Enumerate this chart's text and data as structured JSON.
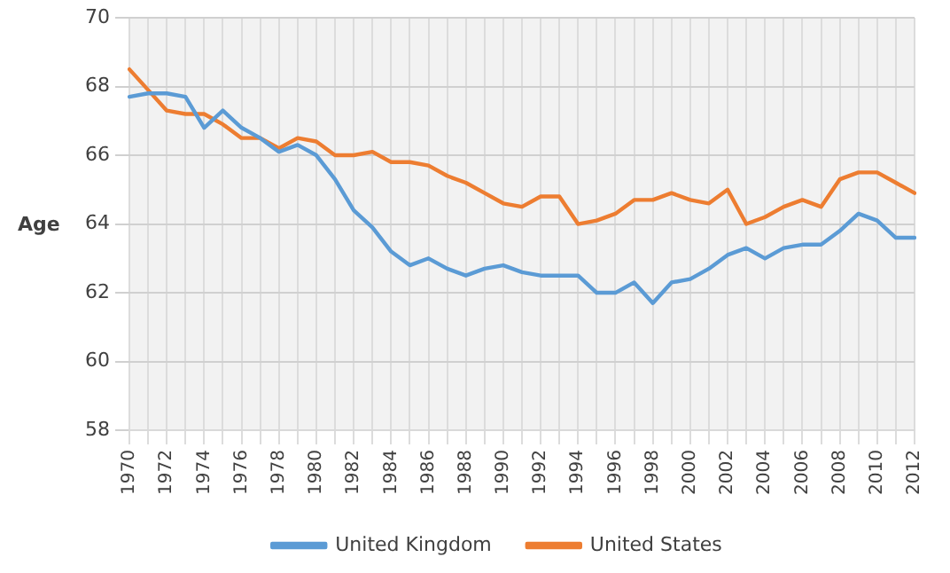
{
  "chart_data": {
    "type": "line",
    "ylabel": "Age",
    "categories": [
      "1970",
      null,
      "1972",
      null,
      "1974",
      null,
      "1976",
      null,
      "1978",
      null,
      "1980",
      null,
      "1982",
      null,
      "1984",
      null,
      "1986",
      null,
      "1988",
      null,
      "1990",
      null,
      "1992",
      null,
      "1994",
      null,
      "1996",
      null,
      "1998",
      null,
      "2000",
      null,
      "2002",
      null,
      "2004",
      null,
      "2006",
      null,
      "2008",
      null,
      "2010",
      null,
      "2012"
    ],
    "series": [
      {
        "name": "United Kingdom",
        "color": "#5b9bd5",
        "values": [
          67.7,
          67.8,
          67.8,
          67.7,
          66.8,
          67.3,
          66.8,
          66.5,
          66.1,
          66.3,
          66.0,
          65.3,
          64.4,
          63.9,
          63.2,
          62.8,
          63.0,
          62.7,
          62.5,
          62.7,
          62.8,
          62.6,
          62.5,
          62.5,
          62.5,
          62.0,
          62.0,
          62.3,
          61.7,
          62.3,
          62.4,
          62.7,
          63.1,
          63.3,
          63.0,
          63.3,
          63.4,
          63.4,
          63.8,
          64.3,
          64.1,
          63.6,
          63.6
        ]
      },
      {
        "name": "United States",
        "color": "#ed7d31",
        "values": [
          68.5,
          67.9,
          67.3,
          67.2,
          67.2,
          66.9,
          66.5,
          66.5,
          66.2,
          66.5,
          66.4,
          66.0,
          66.0,
          66.1,
          65.8,
          65.8,
          65.7,
          65.4,
          65.2,
          64.9,
          64.6,
          64.5,
          64.8,
          64.8,
          64.0,
          64.1,
          64.3,
          64.7,
          64.7,
          64.9,
          64.7,
          64.6,
          65.0,
          64.0,
          64.2,
          64.5,
          64.7,
          64.5,
          65.3,
          65.5,
          65.5,
          65.2,
          64.9
        ]
      }
    ],
    "ylim": [
      58,
      70
    ],
    "yticks": [
      58,
      60,
      62,
      64,
      66,
      68,
      70
    ],
    "grid": true,
    "legend": "bottom",
    "marker": "none",
    "line_style": "solid"
  }
}
